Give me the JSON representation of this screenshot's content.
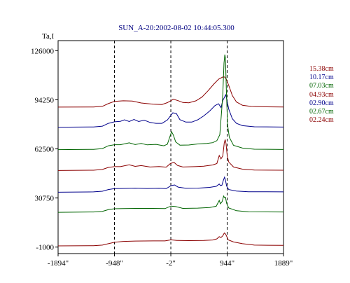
{
  "chart_data": {
    "type": "line",
    "title": "SUN_A-20:2002-08-02 10:44:05.300",
    "ylabel": "Ta,I",
    "xlabel": "",
    "x_ticks": [
      -1894,
      -948,
      -2,
      944,
      1889
    ],
    "x_tick_labels": [
      "-1894\"",
      "-948\"",
      "-2\"",
      "944\"",
      "1889\""
    ],
    "y_ticks": [
      -1000,
      30750,
      62500,
      94250,
      126000
    ],
    "y_tick_labels": [
      "-1000",
      "30750",
      "62500",
      "94250",
      "126000"
    ],
    "xlim": [
      -1894,
      1889
    ],
    "ylim": [
      -5200,
      132500
    ],
    "vertical_dashed_lines_x": [
      -948,
      -2,
      944
    ],
    "grid": false,
    "legend_position": "right",
    "series": [
      {
        "name": "15.38cm",
        "color": "#8b0000",
        "points": [
          [
            -1894,
            89500
          ],
          [
            -1300,
            89600
          ],
          [
            -1150,
            90000
          ],
          [
            -1050,
            91800
          ],
          [
            -948,
            93200
          ],
          [
            -800,
            93600
          ],
          [
            -650,
            93400
          ],
          [
            -500,
            92200
          ],
          [
            -300,
            91400
          ],
          [
            -150,
            91200
          ],
          [
            -60,
            92400
          ],
          [
            40,
            94600
          ],
          [
            120,
            93700
          ],
          [
            200,
            92500
          ],
          [
            300,
            92300
          ],
          [
            420,
            93600
          ],
          [
            520,
            96000
          ],
          [
            620,
            100000
          ],
          [
            720,
            104400
          ],
          [
            800,
            107600
          ],
          [
            870,
            109000
          ],
          [
            900,
            109000
          ],
          [
            930,
            107500
          ],
          [
            970,
            103500
          ],
          [
            1030,
            97000
          ],
          [
            1100,
            92800
          ],
          [
            1200,
            90700
          ],
          [
            1350,
            89900
          ],
          [
            1600,
            89700
          ],
          [
            1889,
            89600
          ]
        ]
      },
      {
        "name": "10.17cm",
        "color": "#00008b",
        "points": [
          [
            -1894,
            76500
          ],
          [
            -1300,
            76700
          ],
          [
            -1150,
            77200
          ],
          [
            -1050,
            79000
          ],
          [
            -948,
            80000
          ],
          [
            -850,
            80300
          ],
          [
            -780,
            81300
          ],
          [
            -700,
            80200
          ],
          [
            -620,
            81500
          ],
          [
            -540,
            80200
          ],
          [
            -450,
            81100
          ],
          [
            -350,
            79600
          ],
          [
            -250,
            79000
          ],
          [
            -150,
            79000
          ],
          [
            -60,
            81200
          ],
          [
            30,
            85800
          ],
          [
            90,
            85400
          ],
          [
            150,
            81400
          ],
          [
            250,
            79800
          ],
          [
            350,
            79800
          ],
          [
            450,
            81300
          ],
          [
            550,
            83800
          ],
          [
            650,
            87000
          ],
          [
            740,
            90500
          ],
          [
            800,
            91700
          ],
          [
            840,
            89200
          ],
          [
            870,
            93800
          ],
          [
            900,
            96000
          ],
          [
            920,
            97500
          ],
          [
            940,
            94000
          ],
          [
            970,
            88200
          ],
          [
            1030,
            82000
          ],
          [
            1100,
            79000
          ],
          [
            1200,
            77500
          ],
          [
            1400,
            76800
          ],
          [
            1889,
            76600
          ]
        ]
      },
      {
        "name": "07.03cm",
        "color": "#006400",
        "points": [
          [
            -1894,
            62000
          ],
          [
            -1300,
            62200
          ],
          [
            -1150,
            62700
          ],
          [
            -1050,
            64500
          ],
          [
            -948,
            65200
          ],
          [
            -850,
            65200
          ],
          [
            -700,
            66400
          ],
          [
            -600,
            65300
          ],
          [
            -500,
            66000
          ],
          [
            -400,
            65100
          ],
          [
            -250,
            65400
          ],
          [
            -120,
            64500
          ],
          [
            -60,
            65500
          ],
          [
            10,
            73600
          ],
          [
            40,
            71500
          ],
          [
            80,
            67000
          ],
          [
            150,
            64900
          ],
          [
            300,
            65000
          ],
          [
            450,
            65700
          ],
          [
            600,
            66000
          ],
          [
            700,
            66500
          ],
          [
            770,
            67800
          ],
          [
            820,
            71600
          ],
          [
            850,
            87000
          ],
          [
            870,
            98000
          ],
          [
            890,
            118000
          ],
          [
            905,
            123500
          ],
          [
            915,
            121000
          ],
          [
            930,
            100000
          ],
          [
            950,
            78000
          ],
          [
            980,
            70000
          ],
          [
            1050,
            64800
          ],
          [
            1200,
            63000
          ],
          [
            1400,
            62300
          ],
          [
            1889,
            62100
          ]
        ]
      },
      {
        "name": "04.93cm",
        "color": "#8b0000",
        "points": [
          [
            -1894,
            48500
          ],
          [
            -1300,
            48700
          ],
          [
            -1150,
            49200
          ],
          [
            -1050,
            50500
          ],
          [
            -948,
            51000
          ],
          [
            -850,
            51000
          ],
          [
            -700,
            52200
          ],
          [
            -600,
            51200
          ],
          [
            -500,
            51700
          ],
          [
            -350,
            50800
          ],
          [
            -200,
            51100
          ],
          [
            -80,
            50700
          ],
          [
            -10,
            53000
          ],
          [
            50,
            53800
          ],
          [
            110,
            51800
          ],
          [
            200,
            50800
          ],
          [
            400,
            51000
          ],
          [
            550,
            51300
          ],
          [
            700,
            52100
          ],
          [
            770,
            53000
          ],
          [
            810,
            58200
          ],
          [
            840,
            56000
          ],
          [
            870,
            58000
          ],
          [
            895,
            66500
          ],
          [
            910,
            68500
          ],
          [
            925,
            66000
          ],
          [
            945,
            58000
          ],
          [
            970,
            54000
          ],
          [
            1050,
            50800
          ],
          [
            1200,
            49400
          ],
          [
            1400,
            48800
          ],
          [
            1889,
            48700
          ]
        ]
      },
      {
        "name": "02.90cm",
        "color": "#00008b",
        "points": [
          [
            -1894,
            34500
          ],
          [
            -1300,
            34700
          ],
          [
            -1150,
            35100
          ],
          [
            -1050,
            36200
          ],
          [
            -948,
            36800
          ],
          [
            -850,
            36900
          ],
          [
            -600,
            37100
          ],
          [
            -400,
            36900
          ],
          [
            -200,
            37000
          ],
          [
            -80,
            36800
          ],
          [
            0,
            38700
          ],
          [
            60,
            39200
          ],
          [
            120,
            37800
          ],
          [
            250,
            37000
          ],
          [
            450,
            37100
          ],
          [
            650,
            37600
          ],
          [
            760,
            38300
          ],
          [
            810,
            39800
          ],
          [
            830,
            38800
          ],
          [
            855,
            39000
          ],
          [
            880,
            42200
          ],
          [
            900,
            44200
          ],
          [
            915,
            42200
          ],
          [
            935,
            38400
          ],
          [
            970,
            36200
          ],
          [
            1100,
            35200
          ],
          [
            1300,
            34800
          ],
          [
            1889,
            34700
          ]
        ]
      },
      {
        "name": "02.67cm",
        "color": "#006400",
        "points": [
          [
            -1894,
            21500
          ],
          [
            -1300,
            21700
          ],
          [
            -1150,
            22100
          ],
          [
            -1050,
            23200
          ],
          [
            -948,
            23800
          ],
          [
            -800,
            23900
          ],
          [
            -600,
            24000
          ],
          [
            -300,
            24000
          ],
          [
            -100,
            23900
          ],
          [
            0,
            25500
          ],
          [
            80,
            25200
          ],
          [
            200,
            24000
          ],
          [
            450,
            24200
          ],
          [
            650,
            24600
          ],
          [
            760,
            25400
          ],
          [
            810,
            29200
          ],
          [
            830,
            27000
          ],
          [
            860,
            28500
          ],
          [
            885,
            32000
          ],
          [
            900,
            31000
          ],
          [
            915,
            31200
          ],
          [
            935,
            27200
          ],
          [
            970,
            24300
          ],
          [
            1100,
            22500
          ],
          [
            1300,
            21800
          ],
          [
            1889,
            21700
          ]
        ]
      },
      {
        "name": "02.24cm",
        "color": "#8b0000",
        "points": [
          [
            -1894,
            -200
          ],
          [
            -1300,
            -100
          ],
          [
            -1150,
            300
          ],
          [
            -1050,
            1200
          ],
          [
            -948,
            2100
          ],
          [
            -800,
            2700
          ],
          [
            -600,
            2900
          ],
          [
            -300,
            3000
          ],
          [
            -100,
            3000
          ],
          [
            0,
            3700
          ],
          [
            100,
            3300
          ],
          [
            300,
            3200
          ],
          [
            550,
            3300
          ],
          [
            700,
            3600
          ],
          [
            770,
            4300
          ],
          [
            810,
            5700
          ],
          [
            840,
            5200
          ],
          [
            870,
            6300
          ],
          [
            895,
            8100
          ],
          [
            910,
            7700
          ],
          [
            930,
            6400
          ],
          [
            960,
            3700
          ],
          [
            1050,
            2300
          ],
          [
            1200,
            1200
          ],
          [
            1400,
            300
          ],
          [
            1889,
            100
          ]
        ]
      }
    ]
  }
}
